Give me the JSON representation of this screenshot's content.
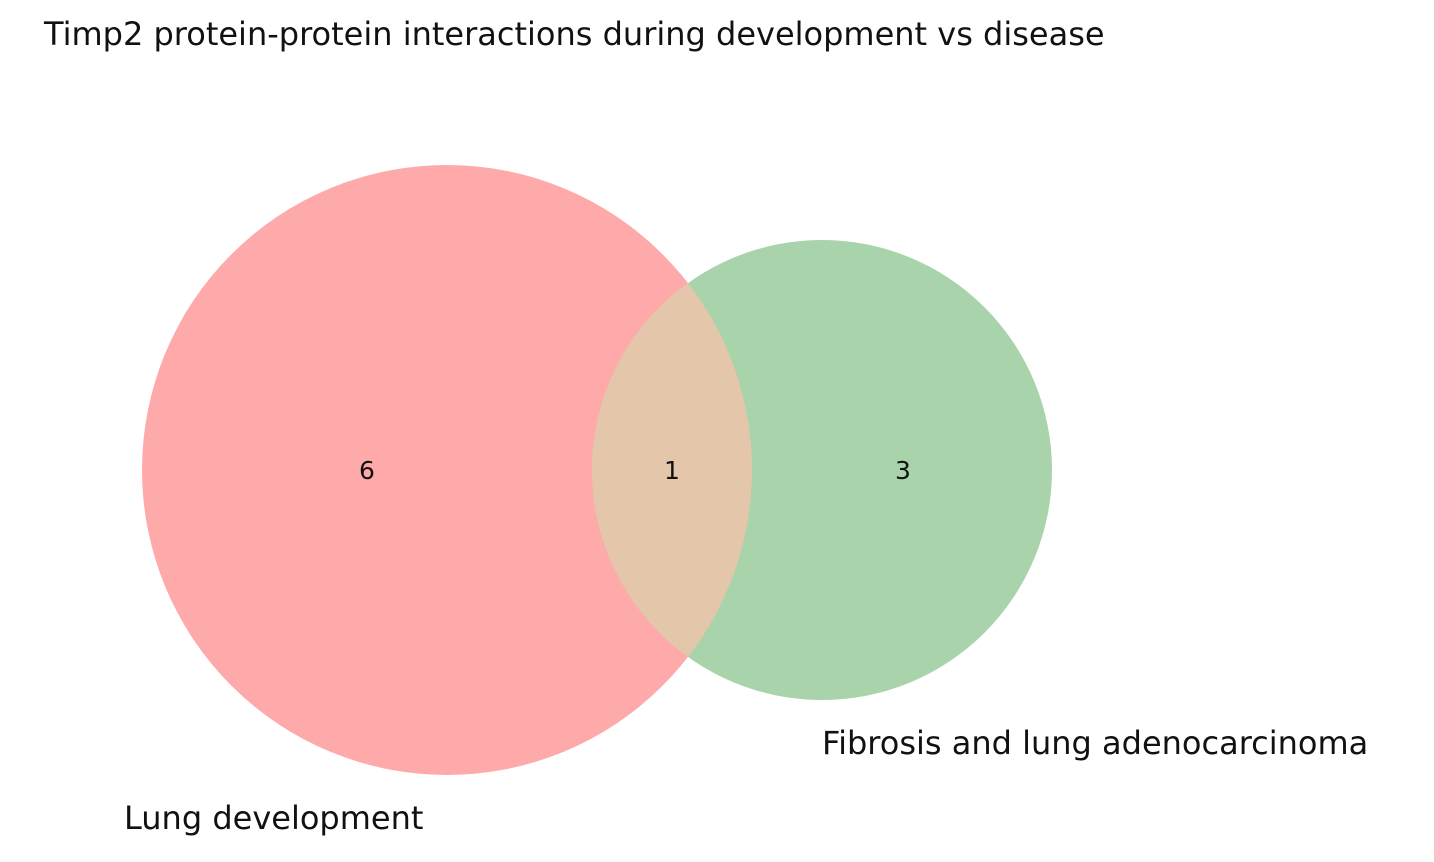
{
  "title": "Timp2 protein-protein interactions during development vs disease",
  "sets": [
    {
      "label": "Lung development",
      "only_count": "6",
      "color": "#ffaaaa"
    },
    {
      "label": "Fibrosis and lung adenocarcinoma",
      "only_count": "3",
      "color": "#a9d3ab"
    }
  ],
  "intersection": {
    "count": "1",
    "color": "#e4c7ab"
  }
}
